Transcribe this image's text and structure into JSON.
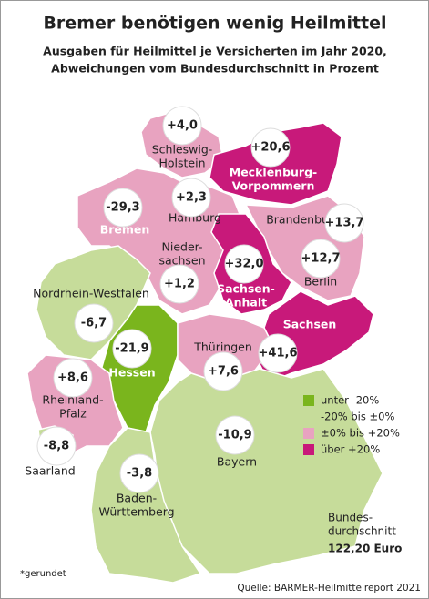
{
  "title": "Bremer benötigen wenig Heilmittel",
  "subtitle": [
    "Ausgaben für Heilmittel je Versicherten im Jahr 2020,",
    "Abweichungen vom Bundesdurchschnitt in Prozent"
  ],
  "regions": [
    {
      "name": [
        "Schleswig-",
        "Holstein"
      ],
      "value": "+4,0",
      "color": "#e8a3c0"
    },
    {
      "name": [
        "Mecklenburg-",
        "Vorpommern"
      ],
      "value": "+20,6",
      "color": "#c8197a"
    },
    {
      "name": [
        "Hamburg"
      ],
      "value": "+2,3",
      "color": "#e8a3c0"
    },
    {
      "name": [
        "Bremen"
      ],
      "value": "-29,3",
      "color": "#7ab51d"
    },
    {
      "name": [
        "Nieder-",
        "sachsen"
      ],
      "value": "+1,2",
      "color": "#e8a3c0"
    },
    {
      "name": [
        "Brandenburg"
      ],
      "value": "+13,7",
      "color": "#e8a3c0"
    },
    {
      "name": [
        "Berlin"
      ],
      "value": "+12,7",
      "color": "#e8a3c0"
    },
    {
      "name": [
        "Sachsen-",
        "Anhalt"
      ],
      "value": "+32,0",
      "color": "#c8197a"
    },
    {
      "name": [
        "Sachsen"
      ],
      "value": "+41,6",
      "color": "#c8197a"
    },
    {
      "name": [
        "Nordrhein-Westfalen"
      ],
      "value": "-6,7",
      "color": "#c6dc9a"
    },
    {
      "name": [
        "Hessen"
      ],
      "value": "-21,9",
      "color": "#7ab51d"
    },
    {
      "name": [
        "Thüringen"
      ],
      "value": "+7,6",
      "color": "#e8a3c0"
    },
    {
      "name": [
        "Rheinland-",
        "Pfalz"
      ],
      "value": "+8,6",
      "color": "#e8a3c0"
    },
    {
      "name": [
        "Saarland"
      ],
      "value": "-8,8",
      "color": "#c6dc9a"
    },
    {
      "name": [
        "Bayern"
      ],
      "value": "-10,9",
      "color": "#c6dc9a"
    },
    {
      "name": [
        "Baden-",
        "Württemberg"
      ],
      "value": "-3,8",
      "color": "#c6dc9a"
    }
  ],
  "legend": [
    {
      "label": "unter -20%",
      "color": "#7ab51d"
    },
    {
      "label": "-20% bis ±0%",
      "color": "#c6dc9a"
    },
    {
      "label": "±0% bis +20%",
      "color": "#e8a3c0"
    },
    {
      "label": "über +20%",
      "color": "#c8197a"
    }
  ],
  "average": {
    "label": [
      "Bundes-",
      "durchschnitt"
    ],
    "value": "122,20 Euro"
  },
  "footnote": "*gerundet",
  "source": "Quelle: BARMER-Heilmittelreport 2021"
}
